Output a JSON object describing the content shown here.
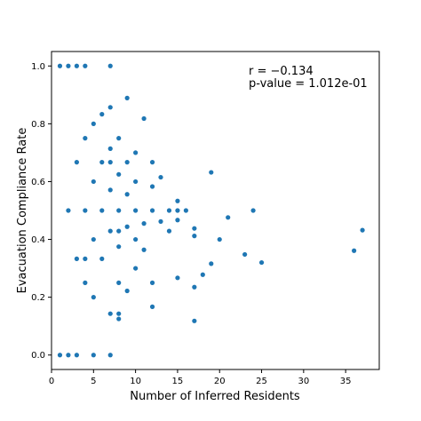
{
  "chart_data": {
    "type": "scatter",
    "xlabel": "Number of Inferred Residents",
    "ylabel": "Evacuation Compliance Rate",
    "xlim": [
      0,
      39
    ],
    "ylim": [
      -0.05,
      1.05
    ],
    "xticks": [
      0,
      5,
      10,
      15,
      20,
      25,
      30,
      35
    ],
    "yticks": [
      0.0,
      0.2,
      0.4,
      0.6,
      0.8,
      1.0
    ],
    "xtick_labels": [
      "0",
      "5",
      "10",
      "15",
      "20",
      "25",
      "30",
      "35"
    ],
    "ytick_labels": [
      "0.0",
      "0.2",
      "0.4",
      "0.6",
      "0.8",
      "1.0"
    ],
    "grid": false,
    "marker_color": "#1f77b4",
    "annotations": {
      "r_text": "r = −0.134",
      "p_text": "p-value = 1.012e-01"
    },
    "points": [
      {
        "x": 1,
        "y": 1.0
      },
      {
        "x": 2,
        "y": 1.0
      },
      {
        "x": 3,
        "y": 1.0
      },
      {
        "x": 4,
        "y": 1.0
      },
      {
        "x": 7,
        "y": 1.0
      },
      {
        "x": 1,
        "y": 0.0
      },
      {
        "x": 2,
        "y": 0.0
      },
      {
        "x": 3,
        "y": 0.0
      },
      {
        "x": 5,
        "y": 0.0
      },
      {
        "x": 7,
        "y": 0.0
      },
      {
        "x": 2,
        "y": 0.5
      },
      {
        "x": 3,
        "y": 0.667
      },
      {
        "x": 3,
        "y": 0.333
      },
      {
        "x": 4,
        "y": 0.75
      },
      {
        "x": 4,
        "y": 0.5
      },
      {
        "x": 4,
        "y": 0.333
      },
      {
        "x": 4,
        "y": 0.25
      },
      {
        "x": 5,
        "y": 0.8
      },
      {
        "x": 5,
        "y": 0.6
      },
      {
        "x": 5,
        "y": 0.4
      },
      {
        "x": 5,
        "y": 0.2
      },
      {
        "x": 6,
        "y": 0.833
      },
      {
        "x": 6,
        "y": 0.667
      },
      {
        "x": 6,
        "y": 0.5
      },
      {
        "x": 6,
        "y": 0.333
      },
      {
        "x": 7,
        "y": 0.857
      },
      {
        "x": 7,
        "y": 0.714
      },
      {
        "x": 7,
        "y": 0.667
      },
      {
        "x": 7,
        "y": 0.571
      },
      {
        "x": 7,
        "y": 0.429
      },
      {
        "x": 7,
        "y": 0.143
      },
      {
        "x": 8,
        "y": 0.75
      },
      {
        "x": 8,
        "y": 0.625
      },
      {
        "x": 8,
        "y": 0.5
      },
      {
        "x": 8,
        "y": 0.429
      },
      {
        "x": 8,
        "y": 0.375
      },
      {
        "x": 8,
        "y": 0.25
      },
      {
        "x": 8,
        "y": 0.143
      },
      {
        "x": 8,
        "y": 0.125
      },
      {
        "x": 9,
        "y": 0.889
      },
      {
        "x": 9,
        "y": 0.667
      },
      {
        "x": 9,
        "y": 0.556
      },
      {
        "x": 9,
        "y": 0.444
      },
      {
        "x": 9,
        "y": 0.222
      },
      {
        "x": 10,
        "y": 0.7
      },
      {
        "x": 10,
        "y": 0.6
      },
      {
        "x": 10,
        "y": 0.5
      },
      {
        "x": 10,
        "y": 0.4
      },
      {
        "x": 10,
        "y": 0.3
      },
      {
        "x": 11,
        "y": 0.818
      },
      {
        "x": 11,
        "y": 0.455
      },
      {
        "x": 11,
        "y": 0.364
      },
      {
        "x": 12,
        "y": 0.667
      },
      {
        "x": 12,
        "y": 0.583
      },
      {
        "x": 12,
        "y": 0.5
      },
      {
        "x": 12,
        "y": 0.25
      },
      {
        "x": 12,
        "y": 0.167
      },
      {
        "x": 13,
        "y": 0.615
      },
      {
        "x": 13,
        "y": 0.462
      },
      {
        "x": 14,
        "y": 0.5
      },
      {
        "x": 14,
        "y": 0.429
      },
      {
        "x": 15,
        "y": 0.533
      },
      {
        "x": 15,
        "y": 0.5
      },
      {
        "x": 15,
        "y": 0.467
      },
      {
        "x": 15,
        "y": 0.267
      },
      {
        "x": 16,
        "y": 0.5
      },
      {
        "x": 17,
        "y": 0.438
      },
      {
        "x": 17,
        "y": 0.412
      },
      {
        "x": 17,
        "y": 0.235
      },
      {
        "x": 17,
        "y": 0.118
      },
      {
        "x": 18,
        "y": 0.278
      },
      {
        "x": 19,
        "y": 0.632
      },
      {
        "x": 19,
        "y": 0.316
      },
      {
        "x": 20,
        "y": 0.4
      },
      {
        "x": 21,
        "y": 0.476
      },
      {
        "x": 23,
        "y": 0.348
      },
      {
        "x": 24,
        "y": 0.5
      },
      {
        "x": 25,
        "y": 0.32
      },
      {
        "x": 36,
        "y": 0.361
      },
      {
        "x": 37,
        "y": 0.432
      }
    ]
  }
}
